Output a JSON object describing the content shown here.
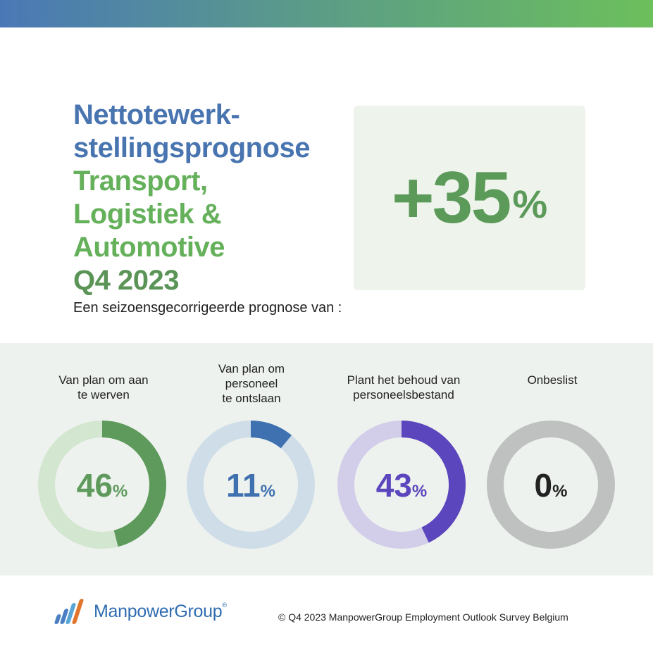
{
  "header": {
    "title_line1": "Nettotewerk-",
    "title_line2": "stellingsprognose",
    "sector_line1": "Transport,",
    "sector_line2": "Logistiek &",
    "sector_line3": "Automotive",
    "quarter": "Q4 2023",
    "subtitle": "Een seizoensgecorrigeerde prognose van :"
  },
  "headline": {
    "value": "+35",
    "unit": "%",
    "color": "#5c9a5a"
  },
  "chart_data": {
    "type": "donut",
    "categories": [
      "Van plan om aan te werven",
      "Van plan om personeel te ontslaan",
      "Plant het behoud van personeelsbestand",
      "Onbeslist"
    ],
    "values": [
      46,
      11,
      43,
      0
    ],
    "unit": "%",
    "label_lines": [
      [
        "Van plan om aan",
        "te werven"
      ],
      [
        "Van plan om",
        "personeel",
        "te ontslaan"
      ],
      [
        "Plant het behoud van",
        "personeelsbestand"
      ],
      [
        "Onbeslist"
      ]
    ],
    "colors": [
      {
        "fill": "#5e9a5c",
        "track": "#d3e6d0",
        "text": "#5e9a5c"
      },
      {
        "fill": "#3f70b0",
        "track": "#cfdde8",
        "text": "#3f70b0"
      },
      {
        "fill": "#5b46bd",
        "track": "#d2cde9",
        "text": "#5b46bd"
      },
      {
        "fill": "#333333",
        "track": "#bfc1c1",
        "text": "#222222"
      }
    ]
  },
  "footer": {
    "brand": "ManpowerGroup",
    "reg": "®",
    "copyright": "© Q4 2023 ManpowerGroup Employment Outlook Survey Belgium",
    "logo_colors": [
      "#4a7fc4",
      "#57a6d6",
      "#e0752b"
    ]
  }
}
